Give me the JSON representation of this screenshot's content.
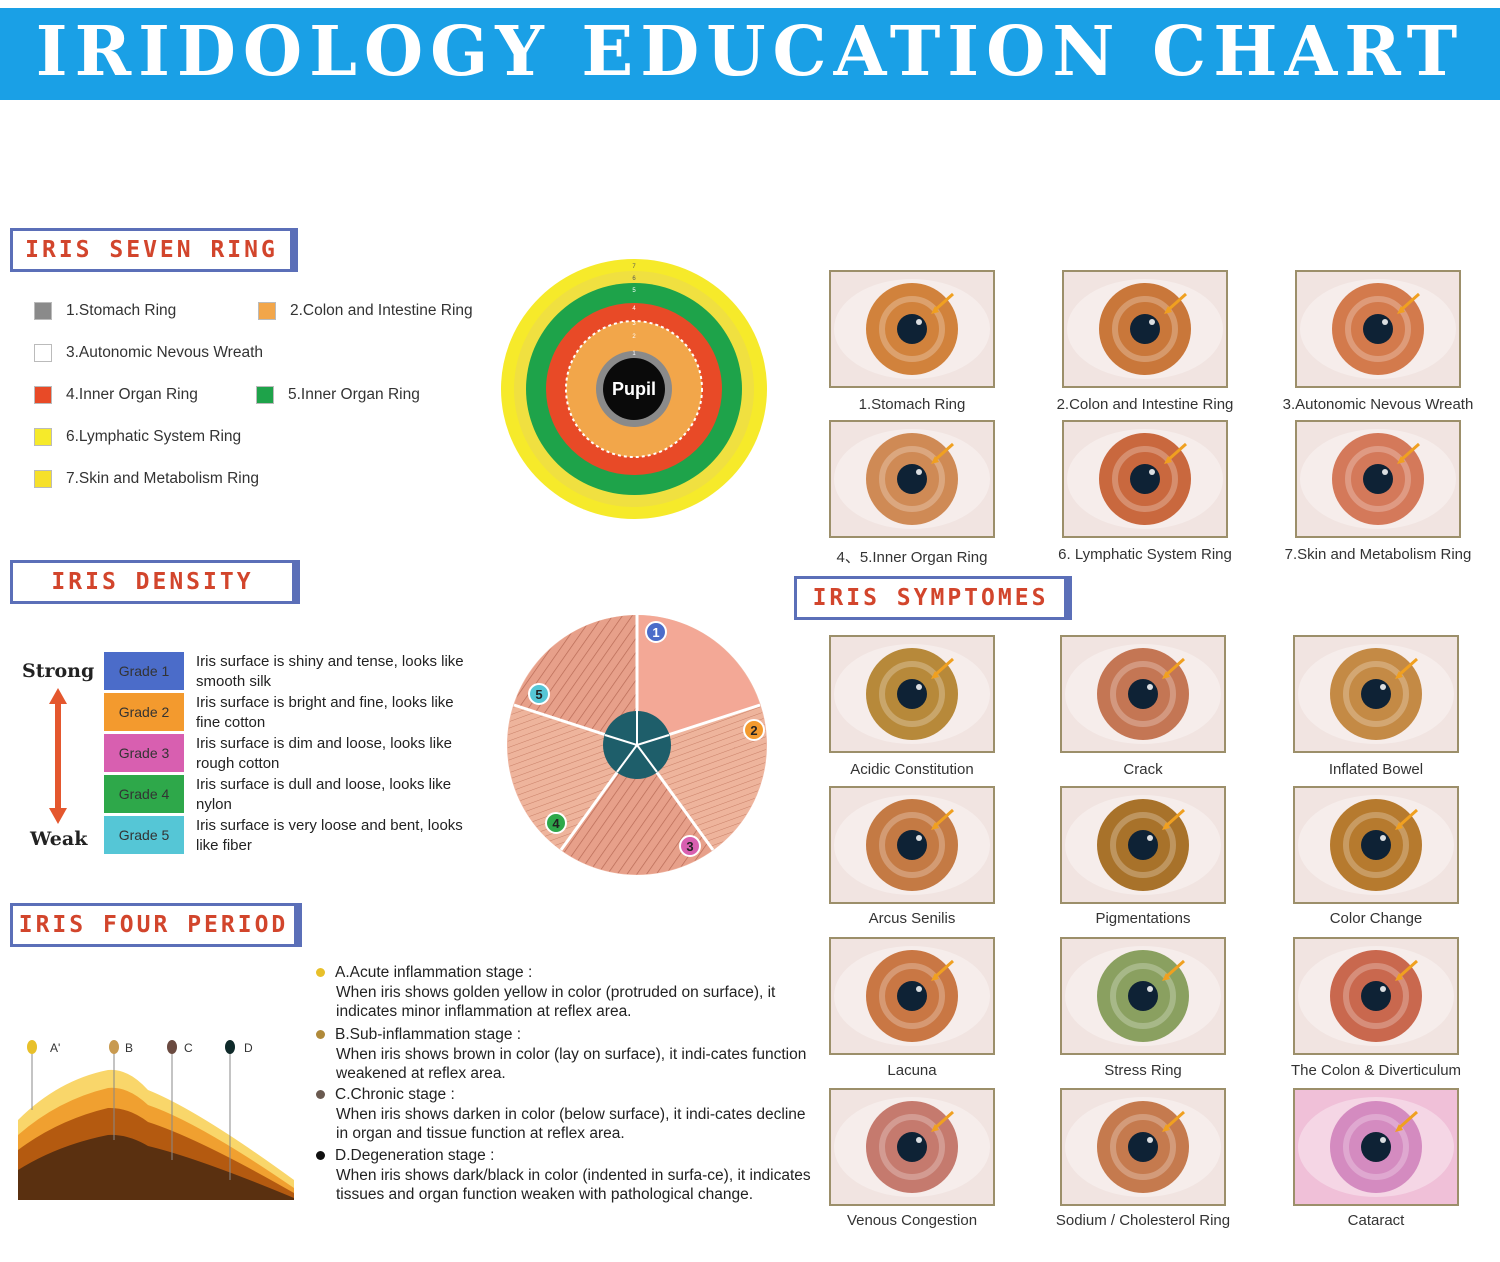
{
  "title": "IRIDOLOGY EDUCATION CHART",
  "seven_ring": {
    "heading": "IRIS SEVEN RING",
    "items": [
      {
        "label": "1.Stomach Ring",
        "color": "#8a8a8a"
      },
      {
        "label": "2.Colon and Intestine Ring",
        "color": "#f2a64a"
      },
      {
        "label": "3.Autonomic Nevous Wreath",
        "color": "#ffffff"
      },
      {
        "label": "4.Inner Organ Ring",
        "color": "#e84a27"
      },
      {
        "label": "5.Inner Organ Ring",
        "color": "#1ea34a"
      },
      {
        "label": "6.Lymphatic System Ring",
        "color": "#f6ea2a"
      },
      {
        "label": "7.Skin and Metabolism Ring",
        "color": "#f6e02a"
      }
    ],
    "pupil_label": "Pupil",
    "ring_numbers": [
      "1",
      "2",
      "3",
      "4",
      "5",
      "6",
      "7"
    ]
  },
  "ring_photos": {
    "captions": [
      "1.Stomach Ring",
      "2.Colon and Intestine Ring",
      "3.Autonomic Nevous Wreath",
      "4、5.Inner Organ Ring",
      "6. Lymphatic System Ring",
      "7.Skin and Metabolism Ring"
    ]
  },
  "density": {
    "heading": "IRIS DENSITY",
    "strong_label": "Strong",
    "weak_label": "Weak",
    "grades": [
      {
        "label": "Grade 1",
        "color": "#4b6cc9",
        "text": "Iris surface is shiny and tense, looks like smooth silk"
      },
      {
        "label": "Grade 2",
        "color": "#f39a2e",
        "text": "Iris surface is bright and fine, looks like fine cotton"
      },
      {
        "label": "Grade 3",
        "color": "#d85fb0",
        "text": "Iris surface is dim and loose, looks like rough cotton"
      },
      {
        "label": "Grade 4",
        "color": "#2ea84a",
        "text": "Iris surface is dull and loose, looks like nylon"
      },
      {
        "label": "Grade 5",
        "color": "#55c6d6",
        "text": "Iris surface is very loose and bent, looks like fiber"
      }
    ],
    "wheel_numbers": [
      "1",
      "2",
      "3",
      "4",
      "5"
    ]
  },
  "symptoms": {
    "heading": "IRIS SYMPTOMES",
    "items": [
      "Acidic Constitution",
      "Crack",
      "Inflated Bowel",
      "Arcus Senilis",
      "Pigmentations",
      "Color Change",
      "Lacuna",
      "Stress Ring",
      "The Colon & Diverticulum",
      "Venous Congestion",
      "Sodium / Cholesterol Ring",
      "Cataract"
    ]
  },
  "four_period": {
    "heading": "IRIS FOUR PERIOD",
    "chart_labels": [
      "A'",
      "B",
      "C",
      "D"
    ],
    "stages": [
      {
        "title": "A.Acute inflammation stage :",
        "desc": "When iris shows golden yellow in color (protruded on surface), it indicates minor inflammation at reflex area.",
        "color": "#e8c02a"
      },
      {
        "title": "B.Sub-inflammation stage :",
        "desc": "When iris shows brown in color (lay on surface), it indi-cates function weakened at reflex area.",
        "color": "#b08a3a"
      },
      {
        "title": "C.Chronic stage :",
        "desc": "When iris shows darken in color (below surface), it indi-cates decline in organ and tissue function at reflex area.",
        "color": "#6a5a50"
      },
      {
        "title": "D.Degeneration stage :",
        "desc": "When iris shows dark/black in color (indented in surfa-ce), it indicates tissues and organ function weaken with pathological change.",
        "color": "#111111"
      }
    ]
  },
  "colors": {
    "banner": "#1aa0e6",
    "heading_text": "#d2452c",
    "heading_border": "#5b6fb8"
  }
}
